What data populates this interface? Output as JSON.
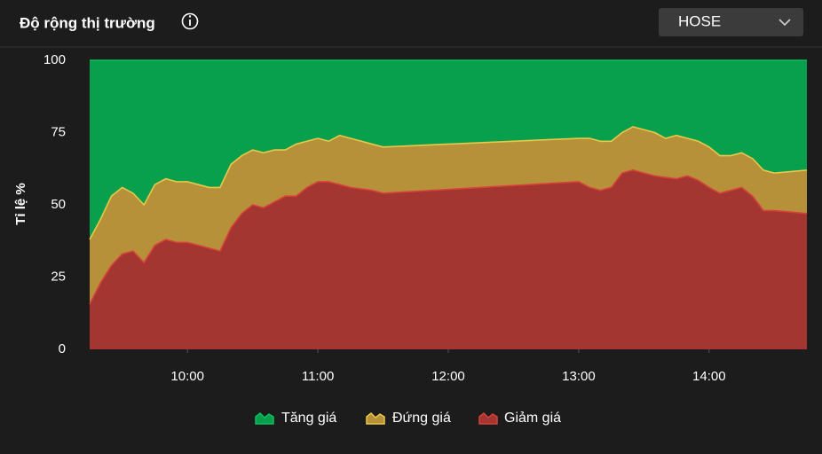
{
  "header": {
    "title": "Độ rộng thị trường",
    "selector": "HOSE"
  },
  "chart_data": {
    "type": "area",
    "stacked": true,
    "ylabel": "Tỉ lệ %",
    "x": [
      555,
      560,
      565,
      570,
      575,
      580,
      585,
      590,
      595,
      600,
      605,
      610,
      615,
      620,
      625,
      630,
      635,
      640,
      645,
      650,
      655,
      660,
      665,
      670,
      675,
      680,
      685,
      690,
      780,
      785,
      790,
      795,
      800,
      805,
      810,
      815,
      820,
      825,
      830,
      835,
      840,
      845,
      850,
      855,
      860,
      865,
      870,
      885
    ],
    "xlim": [
      555,
      885
    ],
    "xticks": [
      {
        "value": 600,
        "label": "10:00"
      },
      {
        "value": 660,
        "label": "11:00"
      },
      {
        "value": 720,
        "label": "12:00"
      },
      {
        "value": 780,
        "label": "13:00"
      },
      {
        "value": 840,
        "label": "14:00"
      }
    ],
    "ylim": [
      0,
      100
    ],
    "yticks": [
      0,
      25,
      50,
      75,
      100
    ],
    "series": [
      {
        "name": "Tăng giá",
        "color": "#08a04c",
        "line_color": "#0fbf5c",
        "values": [
          62,
          55,
          47,
          44,
          46,
          50,
          43,
          41,
          42,
          42,
          43,
          44,
          44,
          36,
          33,
          31,
          32,
          31,
          31,
          29,
          28,
          27,
          28,
          26,
          27,
          28,
          29,
          30,
          27,
          27,
          28,
          28,
          25,
          23,
          24,
          25,
          27,
          26,
          27,
          28,
          30,
          33,
          33,
          32,
          34,
          38,
          39,
          38
        ]
      },
      {
        "name": "Đứng giá",
        "color": "#b6913a",
        "line_color": "#e9c84a",
        "values": [
          22.4,
          22,
          24,
          23,
          20,
          20,
          21,
          21,
          21,
          21,
          21,
          21,
          22,
          22,
          20,
          19,
          19,
          18,
          16,
          18,
          16,
          15,
          14,
          17,
          17,
          16.5,
          16,
          16,
          15,
          17,
          17,
          16,
          14,
          15,
          15,
          15,
          13.5,
          15,
          13,
          13.5,
          14,
          13,
          12,
          12,
          13,
          14,
          13,
          15
        ]
      },
      {
        "name": "Giảm giá",
        "color": "#a33630",
        "line_color": "#d8413a",
        "values": [
          15.6,
          23,
          29,
          33,
          34,
          30,
          36,
          38,
          37,
          37,
          36,
          35,
          34,
          42,
          47,
          50,
          49,
          51,
          53,
          53,
          56,
          58,
          58,
          57,
          56,
          55.5,
          55,
          54,
          58,
          56,
          55,
          56,
          61,
          62,
          61,
          60,
          59.5,
          59,
          60,
          58.5,
          56,
          54,
          55,
          56,
          53,
          48,
          48,
          47
        ]
      }
    ]
  }
}
